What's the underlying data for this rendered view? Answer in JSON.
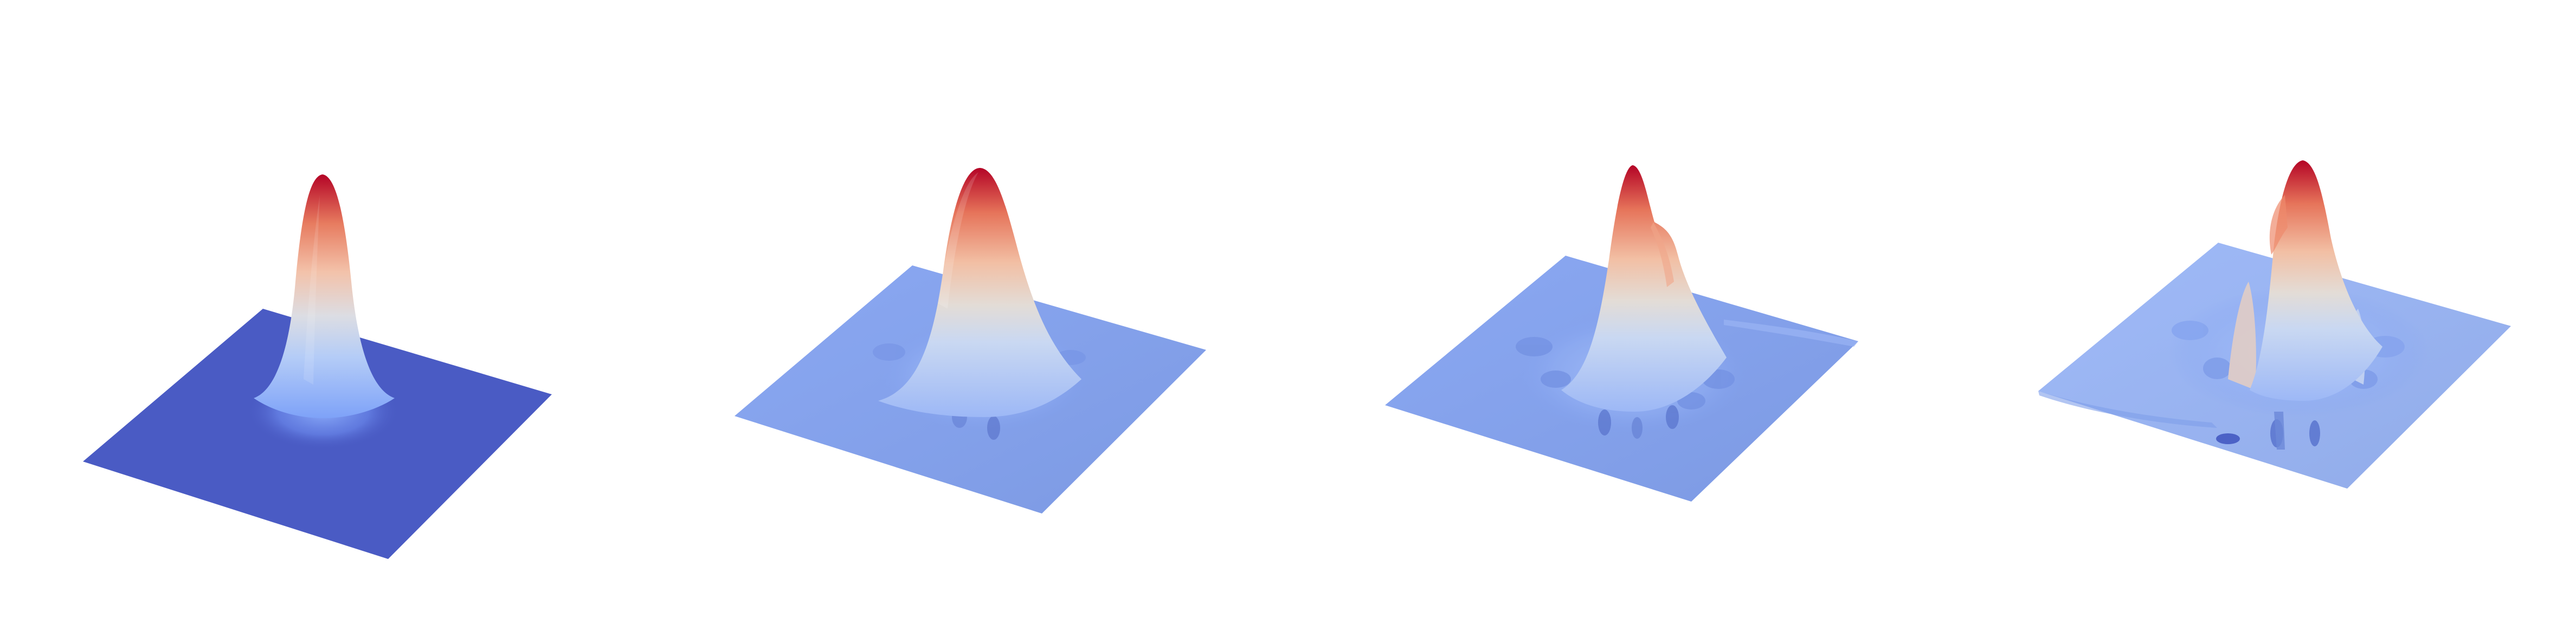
{
  "figure": {
    "panels": [
      {
        "id": "panel-1",
        "base_color": "#4a5bc4",
        "peak_color": "#b40426",
        "side_lobes": false
      },
      {
        "id": "panel-2",
        "base_color": "#84a3f1",
        "peak_color": "#b40426",
        "side_lobes": true
      },
      {
        "id": "panel-3",
        "base_color": "#84a3f1",
        "peak_color": "#b40426",
        "side_lobes": true
      },
      {
        "id": "panel-4",
        "base_color": "#9ab6f7",
        "peak_color": "#b40426",
        "side_lobes": true
      }
    ],
    "colormap": [
      "#3b4cc0",
      "#7b9ff9",
      "#c0d4f5",
      "#dddddd",
      "#f2cbb7",
      "#ee8468",
      "#b40426"
    ]
  }
}
